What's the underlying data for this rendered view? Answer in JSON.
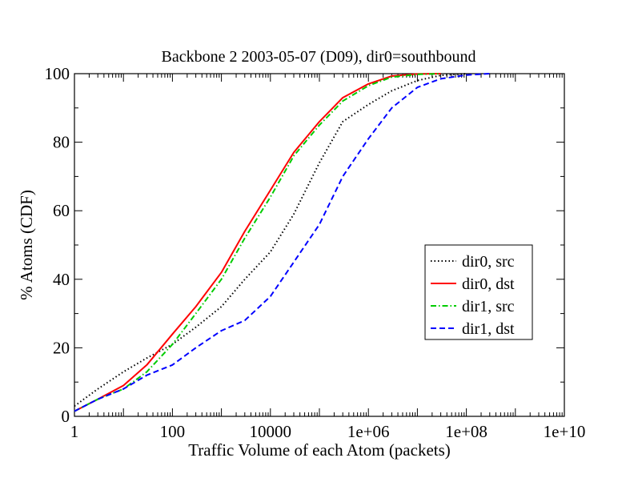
{
  "chart_data": {
    "type": "line",
    "title": "Backbone 2 2003-05-07 (D09), dir0=southbound",
    "xlabel": "Traffic Volume of each Atom (packets)",
    "ylabel": "% Atoms (CDF)",
    "xscale": "log",
    "xlim": [
      1,
      10000000000
    ],
    "ylim": [
      0,
      100
    ],
    "x_ticks": [
      {
        "value": 1,
        "label": "1"
      },
      {
        "value": 100,
        "label": "100"
      },
      {
        "value": 10000,
        "label": "10000"
      },
      {
        "value": 1000000,
        "label": "1e+06"
      },
      {
        "value": 100000000,
        "label": "1e+08"
      },
      {
        "value": 10000000000,
        "label": "1e+10"
      }
    ],
    "y_ticks": [
      {
        "value": 0,
        "label": "0"
      },
      {
        "value": 20,
        "label": "20"
      },
      {
        "value": 40,
        "label": "40"
      },
      {
        "value": 60,
        "label": "60"
      },
      {
        "value": 80,
        "label": "80"
      },
      {
        "value": 100,
        "label": "100"
      }
    ],
    "grid": false,
    "legend_position": "right",
    "series": [
      {
        "name": "dir0, src",
        "color": "#000000",
        "style": "dotted",
        "x": [
          1,
          3,
          10,
          30,
          100,
          300,
          1000,
          3000,
          10000,
          30000,
          100000,
          300000,
          1000000,
          3000000,
          10000000,
          30000000,
          100000000
        ],
        "y": [
          3,
          8,
          13,
          17,
          21,
          26,
          32,
          40,
          48,
          59,
          74,
          86,
          91,
          95,
          98,
          99.5,
          100
        ]
      },
      {
        "name": "dir0, dst",
        "color": "#ff0000",
        "style": "solid",
        "x": [
          1,
          3,
          10,
          30,
          100,
          300,
          1000,
          3000,
          10000,
          30000,
          100000,
          300000,
          1000000,
          3000000,
          10000000,
          30000000
        ],
        "y": [
          1.5,
          5,
          9,
          15,
          24,
          32,
          42,
          54,
          66,
          77,
          86,
          93,
          97,
          99.3,
          99.9,
          100
        ]
      },
      {
        "name": "dir1, src",
        "color": "#00cc00",
        "style": "dashdot",
        "x": [
          1,
          3,
          10,
          30,
          100,
          300,
          1000,
          3000,
          10000,
          30000,
          100000,
          300000,
          1000000,
          3000000,
          10000000,
          30000000
        ],
        "y": [
          1.5,
          5,
          8,
          13,
          21,
          30,
          40,
          52,
          64,
          76,
          85,
          92,
          96.5,
          99,
          99.8,
          100
        ]
      },
      {
        "name": "dir1, dst",
        "color": "#0000ff",
        "style": "dashed",
        "x": [
          1,
          3,
          10,
          30,
          100,
          300,
          1000,
          3000,
          10000,
          30000,
          100000,
          300000,
          1000000,
          3000000,
          10000000,
          30000000,
          100000000,
          300000000
        ],
        "y": [
          1.5,
          5,
          8,
          12,
          15,
          20,
          25,
          28,
          35,
          45,
          56,
          70,
          81,
          90,
          96,
          98.5,
          99.6,
          100
        ]
      }
    ]
  }
}
